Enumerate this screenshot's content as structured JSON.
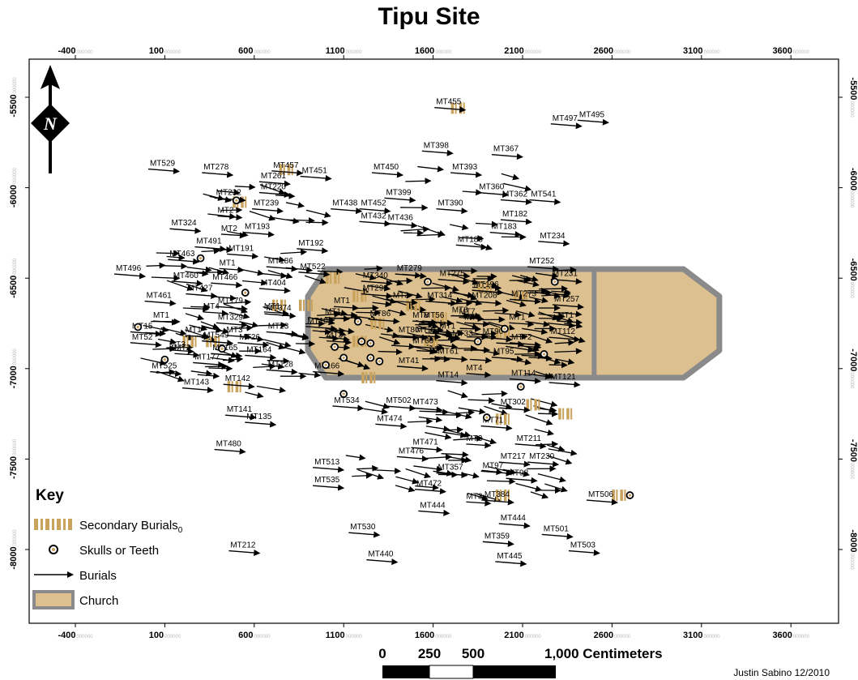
{
  "title": "Tipu Site",
  "axes": {
    "x_ticks": [
      -400,
      100,
      600,
      1100,
      1600,
      2100,
      2600,
      3100,
      3600
    ],
    "y_ticks": [
      -5500,
      -6000,
      -6500,
      -7000,
      -7500,
      -8000
    ],
    "tick_suffix": "000000"
  },
  "colors": {
    "church_fill": "#dcc08f",
    "church_border": "#8a8a8a",
    "secondary": "#c9a25c",
    "skull_ring": "#000000",
    "skull_center": "#c9a25c",
    "arrow": "#000000"
  },
  "north_arrow": {
    "letter": "N",
    "icon": "north-arrow-icon"
  },
  "church": {
    "main_outline": [
      [
        1000,
        -6450
      ],
      [
        3000,
        -6450
      ],
      [
        3200,
        -6600
      ],
      [
        3200,
        -6900
      ],
      [
        3000,
        -7050
      ],
      [
        1000,
        -7050
      ],
      [
        900,
        -6900
      ],
      [
        900,
        -6600
      ]
    ],
    "divider_x": 2500
  },
  "legend": {
    "title": "Key",
    "items": [
      {
        "label": "Secondary Burials",
        "sub": "0",
        "icon": "secondary-burial-icon"
      },
      {
        "label": "Skulls or Teeth",
        "icon": "skull-icon"
      },
      {
        "label": "Burials",
        "icon": "burial-arrow-icon"
      },
      {
        "label": "Church",
        "icon": "church-swatch-icon"
      }
    ]
  },
  "scale_bar": {
    "labels": [
      "0",
      "250",
      "500",
      "1,000 Centimeters"
    ],
    "values": [
      0,
      250,
      500,
      1000
    ]
  },
  "credit": "Justin Sabino 12/2010",
  "labeled_burials": [
    {
      "id": "MT455",
      "x": 1680,
      "y": -5530
    },
    {
      "id": "MT497",
      "x": 2330,
      "y": -5620
    },
    {
      "id": "MT495",
      "x": 2480,
      "y": -5600
    },
    {
      "id": "MT398",
      "x": 1610,
      "y": -5770
    },
    {
      "id": "MT367",
      "x": 2000,
      "y": -5790
    },
    {
      "id": "MT529",
      "x": 80,
      "y": -5870
    },
    {
      "id": "MT278",
      "x": 380,
      "y": -5890
    },
    {
      "id": "MT457",
      "x": 770,
      "y": -5880
    },
    {
      "id": "MT451",
      "x": 930,
      "y": -5910
    },
    {
      "id": "MT450",
      "x": 1330,
      "y": -5890
    },
    {
      "id": "MT393",
      "x": 1770,
      "y": -5890
    },
    {
      "id": "MT261",
      "x": 700,
      "y": -5940
    },
    {
      "id": "MT220",
      "x": 700,
      "y": -6000
    },
    {
      "id": "MT399",
      "x": 1400,
      "y": -6030
    },
    {
      "id": "MT360",
      "x": 1920,
      "y": -6000
    },
    {
      "id": "MT362",
      "x": 2050,
      "y": -6040
    },
    {
      "id": "MT541",
      "x": 2210,
      "y": -6040
    },
    {
      "id": "MT232",
      "x": 450,
      "y": -6030
    },
    {
      "id": "MT438",
      "x": 1100,
      "y": -6090
    },
    {
      "id": "MT452",
      "x": 1260,
      "y": -6090
    },
    {
      "id": "MT390",
      "x": 1690,
      "y": -6090
    },
    {
      "id": "MT239",
      "x": 660,
      "y": -6090
    },
    {
      "id": "MT182",
      "x": 2050,
      "y": -6150
    },
    {
      "id": "MT432",
      "x": 1260,
      "y": -6160
    },
    {
      "id": "MT436",
      "x": 1410,
      "y": -6170
    },
    {
      "id": "MT324",
      "x": 200,
      "y": -6200
    },
    {
      "id": "MT193",
      "x": 610,
      "y": -6220
    },
    {
      "id": "MT183",
      "x": 1990,
      "y": -6220
    },
    {
      "id": "MT234",
      "x": 2260,
      "y": -6270
    },
    {
      "id": "MT491",
      "x": 340,
      "y": -6300
    },
    {
      "id": "MT192",
      "x": 910,
      "y": -6310
    },
    {
      "id": "MT188",
      "x": 1800,
      "y": -6290
    },
    {
      "id": "MT191",
      "x": 520,
      "y": -6340
    },
    {
      "id": "MT463",
      "x": 190,
      "y": -6370
    },
    {
      "id": "MT186",
      "x": 740,
      "y": -6410
    },
    {
      "id": "MT252",
      "x": 2200,
      "y": -6410
    },
    {
      "id": "MT522",
      "x": 920,
      "y": -6440
    },
    {
      "id": "MT496",
      "x": -110,
      "y": -6450
    },
    {
      "id": "MT460",
      "x": 210,
      "y": -6490
    },
    {
      "id": "MT340",
      "x": 1270,
      "y": -6490
    },
    {
      "id": "MT279",
      "x": 1460,
      "y": -6450
    },
    {
      "id": "MT275",
      "x": 1700,
      "y": -6480
    },
    {
      "id": "MT231",
      "x": 2330,
      "y": -6480
    },
    {
      "id": "MT466",
      "x": 430,
      "y": -6500
    },
    {
      "id": "MT404",
      "x": 700,
      "y": -6530
    },
    {
      "id": "MT196",
      "x": 1890,
      "y": -6540
    },
    {
      "id": "MT427",
      "x": 290,
      "y": -6560
    },
    {
      "id": "MT299",
      "x": 1270,
      "y": -6560
    },
    {
      "id": "MT314",
      "x": 1630,
      "y": -6600
    },
    {
      "id": "MT208",
      "x": 1880,
      "y": -6600
    },
    {
      "id": "MT273",
      "x": 2100,
      "y": -6590
    },
    {
      "id": "MT461",
      "x": 60,
      "y": -6600
    },
    {
      "id": "MT179",
      "x": 460,
      "y": -6630
    },
    {
      "id": "MT374",
      "x": 730,
      "y": -6670
    },
    {
      "id": "MT257",
      "x": 2340,
      "y": -6620
    },
    {
      "id": "MT86",
      "x": 1310,
      "y": -6700
    },
    {
      "id": "MT56",
      "x": 1610,
      "y": -6710
    },
    {
      "id": "MT329",
      "x": 460,
      "y": -6720
    },
    {
      "id": "MT10",
      "x": 960,
      "y": -6740
    },
    {
      "id": "MT23",
      "x": 740,
      "y": -6770
    },
    {
      "id": "MT15",
      "x": -20,
      "y": -6770
    },
    {
      "id": "MT549",
      "x": 380,
      "y": -6820
    },
    {
      "id": "MT112",
      "x": 2320,
      "y": -6800
    },
    {
      "id": "MT52",
      "x": -20,
      "y": -6830
    },
    {
      "id": "MT26",
      "x": 580,
      "y": -6830
    },
    {
      "id": "MT80",
      "x": 1470,
      "y": -6790
    },
    {
      "id": "MT33",
      "x": 1770,
      "y": -6810
    },
    {
      "id": "MT90",
      "x": 1940,
      "y": -6800
    },
    {
      "id": "MT72",
      "x": 2100,
      "y": -6830
    },
    {
      "id": "MT60",
      "x": 1550,
      "y": -6850
    },
    {
      "id": "MT165",
      "x": 430,
      "y": -6890
    },
    {
      "id": "MT164",
      "x": 620,
      "y": -6900
    },
    {
      "id": "MT95",
      "x": 2000,
      "y": -6910
    },
    {
      "id": "MT177",
      "x": 330,
      "y": -6940
    },
    {
      "id": "MT61",
      "x": 1690,
      "y": -6910
    },
    {
      "id": "MT41",
      "x": 1470,
      "y": -6960
    },
    {
      "id": "MT128",
      "x": 740,
      "y": -6980
    },
    {
      "id": "MT166",
      "x": 1000,
      "y": -6990
    },
    {
      "id": "MT525",
      "x": 90,
      "y": -6990
    },
    {
      "id": "MT114",
      "x": 2100,
      "y": -7030
    },
    {
      "id": "MT14",
      "x": 1690,
      "y": -7040
    },
    {
      "id": "MT121",
      "x": 2320,
      "y": -7050
    },
    {
      "id": "MT142",
      "x": 500,
      "y": -7060
    },
    {
      "id": "MT143",
      "x": 270,
      "y": -7080
    },
    {
      "id": "MT534",
      "x": 1110,
      "y": -7180
    },
    {
      "id": "MT502",
      "x": 1400,
      "y": -7180
    },
    {
      "id": "MT473",
      "x": 1550,
      "y": -7190
    },
    {
      "id": "MT302",
      "x": 2040,
      "y": -7190
    },
    {
      "id": "MT141",
      "x": 510,
      "y": -7230
    },
    {
      "id": "MT135",
      "x": 620,
      "y": -7270
    },
    {
      "id": "MT474",
      "x": 1350,
      "y": -7280
    },
    {
      "id": "MT71",
      "x": 1940,
      "y": -7290
    },
    {
      "id": "MT471",
      "x": 1550,
      "y": -7410
    },
    {
      "id": "MT211",
      "x": 2130,
      "y": -7390
    },
    {
      "id": "MT480",
      "x": 450,
      "y": -7420
    },
    {
      "id": "MT476",
      "x": 1470,
      "y": -7460
    },
    {
      "id": "MT217",
      "x": 2040,
      "y": -7490
    },
    {
      "id": "MT230",
      "x": 2200,
      "y": -7490
    },
    {
      "id": "MT513",
      "x": 1000,
      "y": -7520
    },
    {
      "id": "MT357",
      "x": 1690,
      "y": -7550
    },
    {
      "id": "MT97",
      "x": 1940,
      "y": -7540
    },
    {
      "id": "MT98",
      "x": 2080,
      "y": -7580
    },
    {
      "id": "MT535",
      "x": 1000,
      "y": -7620
    },
    {
      "id": "MT472",
      "x": 1570,
      "y": -7640
    },
    {
      "id": "MT384",
      "x": 1950,
      "y": -7700
    },
    {
      "id": "MT506",
      "x": 2530,
      "y": -7700
    },
    {
      "id": "MT444",
      "x": 1590,
      "y": -7760
    },
    {
      "id": "MT444",
      "x": 2040,
      "y": -7830
    },
    {
      "id": "MT530",
      "x": 1200,
      "y": -7880
    },
    {
      "id": "MT501",
      "x": 2280,
      "y": -7890
    },
    {
      "id": "MT359",
      "x": 1950,
      "y": -7930
    },
    {
      "id": "MT212",
      "x": 530,
      "y": -7980
    },
    {
      "id": "MT503",
      "x": 2430,
      "y": -7980
    },
    {
      "id": "MT440",
      "x": 1300,
      "y": -8030
    },
    {
      "id": "MT445",
      "x": 2020,
      "y": -8040
    }
  ],
  "partial_labels": [
    {
      "text": "MT2",
      "x": 440,
      "y": -6130
    },
    {
      "text": "MT2",
      "x": 460,
      "y": -6230
    },
    {
      "text": "MT1",
      "x": 450,
      "y": -6420
    },
    {
      "text": "MT4",
      "x": 360,
      "y": -6660
    },
    {
      "text": "MT1",
      "x": 80,
      "y": -6710
    },
    {
      "text": "MT1",
      "x": 700,
      "y": -6660
    },
    {
      "text": "MT3",
      "x": 1420,
      "y": -6600
    },
    {
      "text": "MT8",
      "x": 1530,
      "y": -6710
    },
    {
      "text": "MT7",
      "x": 1790,
      "y": -6690
    },
    {
      "text": "MT3",
      "x": 1820,
      "y": -6720
    },
    {
      "text": "MT3",
      "x": 1550,
      "y": -6790
    },
    {
      "text": "MT1",
      "x": 1680,
      "y": -6770
    },
    {
      "text": "MT1",
      "x": 2070,
      "y": -6720
    },
    {
      "text": "MT1",
      "x": 2340,
      "y": -6710
    },
    {
      "text": "MT3",
      "x": 1750,
      "y": -6680
    },
    {
      "text": "MT1",
      "x": 1040,
      "y": -6690
    },
    {
      "text": "MT3",
      "x": 1050,
      "y": -6820
    },
    {
      "text": "MT1",
      "x": 1090,
      "y": -6630
    },
    {
      "text": "MT1",
      "x": 260,
      "y": -6790
    },
    {
      "text": "MT2",
      "x": 200,
      "y": -6890
    },
    {
      "text": "MT3",
      "x": 490,
      "y": -6790
    },
    {
      "text": "MT4",
      "x": 1830,
      "y": -7000
    },
    {
      "text": "MT3",
      "x": 1830,
      "y": -7390
    },
    {
      "text": "MT3",
      "x": 1830,
      "y": -7710
    },
    {
      "text": "MT3",
      "x": 170,
      "y": -6870
    }
  ]
}
